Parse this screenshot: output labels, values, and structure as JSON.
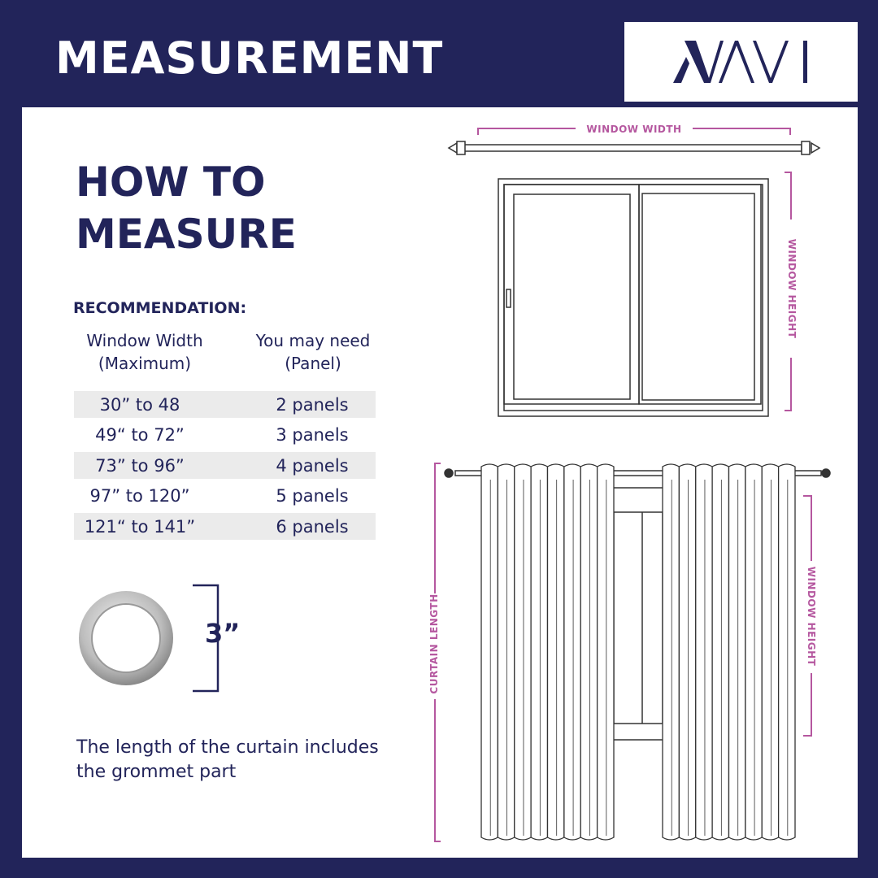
{
  "header": {
    "title": "MEASUREMENT",
    "logo_text": "NAVI"
  },
  "left": {
    "title_line1": "HOW TO",
    "title_line2": "MEASURE",
    "recommendation_label": "RECOMMENDATION:",
    "table": {
      "headers": [
        [
          "Window Width",
          "(Maximum)"
        ],
        [
          "You may need",
          "(Panel)"
        ]
      ],
      "rows": [
        {
          "width": "30” to 48",
          "panels": "2 panels"
        },
        {
          "width": "49“ to 72”",
          "panels": "3 panels"
        },
        {
          "width": "73” to 96”",
          "panels": "4 panels"
        },
        {
          "width": "97” to 120”",
          "panels": "5 panels"
        },
        {
          "width": "121“ to 141”",
          "panels": "6 panels"
        }
      ]
    },
    "grommet_size": "3”",
    "note": "The length of the curtain includes the grommet part"
  },
  "diagram": {
    "window_width_label": "WINDOW WIDTH",
    "window_height_label": "WINDOW HEIGHT",
    "curtain_length_label": "CURTAIN LENGTH",
    "curtain_window_height_label": "WINDOW HEIGHT"
  },
  "colors": {
    "navy": "#22245a",
    "accent": "#b5579f",
    "row_shade": "#ebebeb"
  }
}
